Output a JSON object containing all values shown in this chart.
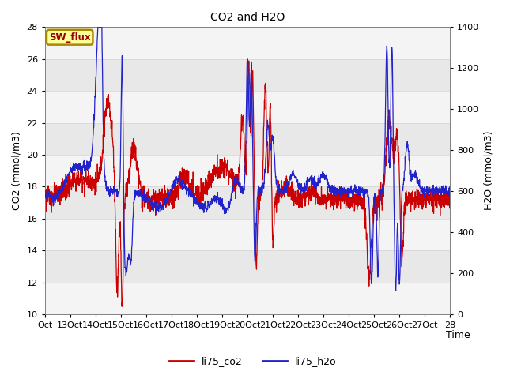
{
  "title": "CO2 and H2O",
  "xlabel": "Time",
  "ylabel_left": "CO2 (mmol/m3)",
  "ylabel_right": "H2O (mmol/m3)",
  "ylim_left": [
    10,
    28
  ],
  "ylim_right": [
    0,
    1400
  ],
  "yticks_left": [
    10,
    12,
    14,
    16,
    18,
    20,
    22,
    24,
    26,
    28
  ],
  "yticks_right": [
    0,
    200,
    400,
    600,
    800,
    1000,
    1200,
    1400
  ],
  "xtick_labels": [
    "Oct",
    "13Oct",
    "14Oct",
    "15Oct",
    "16Oct",
    "17Oct",
    "18Oct",
    "19Oct",
    "20Oct",
    "21Oct",
    "22Oct",
    "23Oct",
    "24Oct",
    "25Oct",
    "26Oct",
    "27Oct",
    "28"
  ],
  "co2_color": "#cc0000",
  "h2o_color": "#2222cc",
  "bg_color": "#e8e8e8",
  "annotation_text": "SW_flux",
  "annotation_bg": "#ffff99",
  "annotation_border": "#aa8800",
  "legend_labels": [
    "li75_co2",
    "li75_h2o"
  ],
  "n_points": 2000,
  "figsize": [
    6.4,
    4.8
  ],
  "dpi": 100
}
